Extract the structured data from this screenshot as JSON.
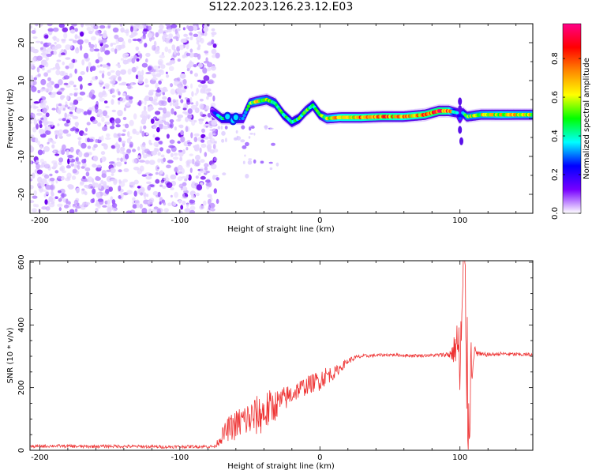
{
  "title": "S122.2023.126.23.12.E03",
  "chart_data": [
    {
      "type": "heatmap",
      "title": "S122.2023.126.23.12.E03",
      "xlabel": "Height of straight line (km)",
      "ylabel": "Frequency (Hz)",
      "xlim": [
        -207,
        152
      ],
      "ylim": [
        -25,
        25
      ],
      "xticks": [
        -200,
        -100,
        0,
        100
      ],
      "yticks": [
        20,
        10,
        0,
        -10,
        -20
      ],
      "colorbar": {
        "label": "Normalized spectral amplitude",
        "range": [
          0,
          0.98
        ],
        "ticks": [
          0.0,
          0.2,
          0.4,
          0.6,
          0.8
        ],
        "colormap": [
          "#ffffff",
          "#7700ff",
          "#0000ff",
          "#00ffff",
          "#00ff00",
          "#ffff00",
          "#ff8800",
          "#ff0000",
          "#ff0088"
        ]
      },
      "noise_region_x": [
        -207,
        -73
      ],
      "ridge": {
        "x": [
          -77,
          -70,
          -62,
          -55,
          -50,
          -45,
          -38,
          -32,
          -26,
          -20,
          -15,
          -10,
          -5,
          0,
          5,
          15,
          30,
          45,
          60,
          75,
          85,
          92,
          98,
          100,
          102,
          105,
          115,
          130,
          152
        ],
        "y": [
          2,
          0,
          0,
          0,
          4,
          4.5,
          5,
          4,
          1,
          -1,
          0,
          2,
          3.5,
          1,
          0,
          0.3,
          0.3,
          0.5,
          0.5,
          1,
          2,
          2,
          1.5,
          0,
          1.5,
          0.5,
          1,
          1,
          1
        ],
        "amplitude": [
          0.15,
          0.4,
          0.45,
          0.3,
          0.5,
          0.6,
          0.55,
          0.5,
          0.45,
          0.4,
          0.45,
          0.5,
          0.45,
          0.45,
          0.6,
          0.7,
          0.72,
          0.75,
          0.7,
          0.75,
          0.8,
          0.75,
          0.3,
          0.25,
          0.35,
          0.55,
          0.6,
          0.65,
          0.6
        ]
      }
    },
    {
      "type": "line",
      "xlabel": "Height of straight line (km)",
      "ylabel": "SNR (10 * v/v)",
      "xlim": [
        -207,
        152
      ],
      "ylim": [
        0,
        605
      ],
      "xticks": [
        -200,
        -100,
        0,
        100
      ],
      "yticks": [
        0,
        200,
        400,
        600
      ],
      "color": "#ee3333",
      "series": [
        {
          "x": [
            -207,
            -190,
            -170,
            -150,
            -130,
            -110,
            -90,
            -75,
            -70,
            -65,
            -60,
            -55,
            -50,
            -45,
            -40,
            -35,
            -30,
            -25,
            -20,
            -15,
            -10,
            -5,
            0,
            5,
            10,
            15,
            20,
            25,
            30,
            40,
            50,
            60,
            70,
            80,
            90,
            95,
            98,
            100,
            103,
            106,
            108,
            110,
            115,
            120,
            130,
            140,
            152
          ],
          "y": [
            12,
            14,
            12,
            13,
            12,
            11,
            12,
            12,
            45,
            70,
            80,
            95,
            100,
            110,
            120,
            135,
            150,
            165,
            180,
            195,
            205,
            215,
            225,
            240,
            245,
            265,
            285,
            295,
            300,
            303,
            305,
            303,
            302,
            303,
            305,
            310,
            350,
            250,
            600,
            90,
            270,
            315,
            305,
            305,
            308,
            306,
            305
          ],
          "noise_amplitude": [
            5,
            5,
            5,
            5,
            5,
            5,
            5,
            5,
            25,
            40,
            50,
            55,
            60,
            65,
            70,
            60,
            45,
            40,
            35,
            30,
            30,
            30,
            35,
            30,
            20,
            15,
            10,
            8,
            6,
            5,
            5,
            5,
            5,
            5,
            8,
            30,
            90,
            150,
            200,
            200,
            120,
            20,
            8,
            6,
            6,
            6,
            6
          ]
        }
      ]
    }
  ]
}
